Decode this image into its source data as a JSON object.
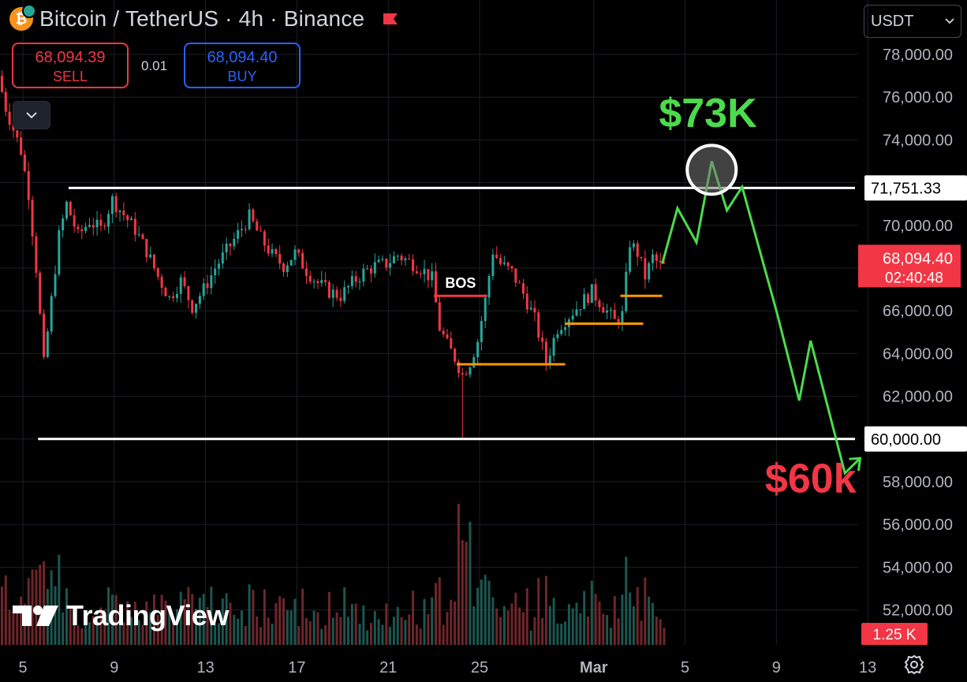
{
  "header": {
    "title": "Bitcoin / TetherUS · 4h · Binance",
    "sell_price": "68,094.39",
    "sell_label": "SELL",
    "spread": "0.01",
    "buy_price": "68,094.40",
    "buy_label": "BUY",
    "currency": "USDT"
  },
  "icons": {
    "coin": "bitcoin-icon",
    "flag": "flag-icon",
    "collapse": "chevron-down-icon",
    "settings": "gear-icon",
    "logo": "tradingview-logo"
  },
  "colors": {
    "up": "#26a69a",
    "down": "#f23645",
    "projection": "#4cdb4c",
    "level_line": "#ffffff",
    "orange_level": "#ff9800"
  },
  "logo_text": "TradingView",
  "chart_data": {
    "type": "candlestick",
    "timeframe": "4h",
    "ylim": [
      50500,
      79500
    ],
    "y_ticks": [
      78000,
      76000,
      74000,
      72000,
      70000,
      68000,
      66000,
      64000,
      62000,
      60000,
      58000,
      56000,
      54000,
      52000
    ],
    "y_tick_labels": [
      "78,000.00",
      "76,000.00",
      "74,000.00",
      "72,000.00",
      "70,000.00",
      "68,000.00",
      "66,000.00",
      "64,000.00",
      "62,000.00",
      "60,000.00",
      "58,000.00",
      "56,000.00",
      "54,000.00",
      "52,000.00"
    ],
    "x_tick_labels": [
      "5",
      "9",
      "13",
      "17",
      "21",
      "25",
      "Mar",
      "5",
      "9",
      "13"
    ],
    "x_tick_dates": [
      "Feb 5",
      "Feb 9",
      "Feb 13",
      "Feb 17",
      "Feb 21",
      "Feb 25",
      "Mar 1",
      "Mar 5",
      "Mar 9",
      "Mar 13"
    ],
    "x_start": "Feb 5",
    "x_end": "Mar 14",
    "price_path": [
      [
        "Feb 4 00:00",
        77000
      ],
      [
        "Feb 4 08:00",
        75500
      ],
      [
        "Feb 4 16:00",
        74500
      ],
      [
        "Feb 5 00:00",
        73500
      ],
      [
        "Feb 5 08:00",
        71500
      ],
      [
        "Feb 5 16:00",
        68000
      ],
      [
        "Feb 6 00:00",
        63500
      ],
      [
        "Feb 6 08:00",
        66500
      ],
      [
        "Feb 6 16:00",
        69500
      ],
      [
        "Feb 7 00:00",
        71000
      ],
      [
        "Feb 7 12:00",
        69500
      ],
      [
        "Feb 8 00:00",
        70200
      ],
      [
        "Feb 8 12:00",
        69800
      ],
      [
        "Feb 9 00:00",
        71200
      ],
      [
        "Feb 9 12:00",
        70500
      ],
      [
        "Feb 10 00:00",
        69800
      ],
      [
        "Feb 10 12:00",
        68800
      ],
      [
        "Feb 11 00:00",
        67600
      ],
      [
        "Feb 11 12:00",
        66600
      ],
      [
        "Feb 12 00:00",
        67400
      ],
      [
        "Feb 12 12:00",
        66200
      ],
      [
        "Feb 13 00:00",
        67000
      ],
      [
        "Feb 13 12:00",
        68000
      ],
      [
        "Feb 14 00:00",
        68800
      ],
      [
        "Feb 14 12:00",
        69600
      ],
      [
        "Feb 15 00:00",
        70400
      ],
      [
        "Feb 15 12:00",
        69400
      ],
      [
        "Feb 16 00:00",
        68600
      ],
      [
        "Feb 16 12:00",
        68100
      ],
      [
        "Feb 17 00:00",
        68700
      ],
      [
        "Feb 17 12:00",
        67900
      ],
      [
        "Feb 18 00:00",
        67300
      ],
      [
        "Feb 18 12:00",
        66900
      ],
      [
        "Feb 19 00:00",
        66700
      ],
      [
        "Feb 19 12:00",
        67300
      ],
      [
        "Feb 20 00:00",
        67800
      ],
      [
        "Feb 20 12:00",
        68100
      ],
      [
        "Feb 21 00:00",
        68200
      ],
      [
        "Feb 21 12:00",
        68600
      ],
      [
        "Feb 22 00:00",
        68300
      ],
      [
        "Feb 22 12:00",
        68000
      ],
      [
        "Feb 23 00:00",
        67500
      ],
      [
        "Feb 23 08:00",
        65200
      ],
      [
        "Feb 23 16:00",
        64400
      ],
      [
        "Feb 24 00:00",
        63800
      ],
      [
        "Feb 24 08:00",
        63000
      ],
      [
        "Feb 24 16:00",
        63600
      ],
      [
        "Feb 25 00:00",
        64600
      ],
      [
        "Feb 25 08:00",
        66500
      ],
      [
        "Feb 25 16:00",
        68800
      ],
      [
        "Feb 26 00:00",
        68200
      ],
      [
        "Feb 26 12:00",
        67800
      ],
      [
        "Feb 27 00:00",
        66800
      ],
      [
        "Feb 27 12:00",
        65600
      ],
      [
        "Feb 28 00:00",
        63600
      ],
      [
        "Feb 28 12:00",
        65200
      ],
      [
        "Mar 1 00:00",
        66900
      ],
      [
        "Mar 1 12:00",
        66200
      ],
      [
        "Mar 2 00:00",
        65500
      ],
      [
        "Mar 2 08:00",
        65800
      ],
      [
        "Mar 2 16:00",
        69200
      ],
      [
        "Mar 3 00:00",
        68700
      ],
      [
        "Mar 3 08:00",
        67600
      ],
      [
        "Mar 3 16:00",
        68500
      ],
      [
        "Mar 4 00:00",
        68094.4
      ]
    ],
    "volume_unit_label": "1.25 K",
    "levels": [
      {
        "name": "range-high",
        "price": 71751.33,
        "label": "71,751.33",
        "from": "Feb 7 00:00"
      },
      {
        "name": "range-low",
        "price": 60000,
        "label": "60,000.00",
        "from": "Feb 5 16:00"
      }
    ],
    "current_price": {
      "value": 68094.4,
      "label": "68,094.40",
      "countdown": "02:40:48"
    },
    "bos": {
      "label": "BOS",
      "price": 66700,
      "from": "Feb 23 00:00",
      "to": "Feb 25 08:00"
    },
    "orange_levels": [
      {
        "price": 63500,
        "from": "Feb 24 00:00",
        "to": "Feb 28 18:00"
      },
      {
        "price": 65400,
        "from": "Feb 28 18:00",
        "to": "Mar 3 04:00"
      },
      {
        "price": 66700,
        "from": "Mar 2 04:00",
        "to": "Mar 4 00:00"
      }
    ],
    "projection": [
      [
        "Mar 4 00:00",
        68200
      ],
      [
        "Mar 4 16:00",
        70800
      ],
      [
        "Mar 5 12:00",
        69200
      ],
      [
        "Mar 6 04:00",
        73000
      ],
      [
        "Mar 6 20:00",
        70700
      ],
      [
        "Mar 7 12:00",
        71800
      ],
      [
        "Mar 9 00:00",
        66000
      ],
      [
        "Mar 10 00:00",
        61800
      ],
      [
        "Mar 10 12:00",
        64600
      ],
      [
        "Mar 12 00:00",
        58400
      ],
      [
        "Mar 12 16:00",
        59100
      ]
    ],
    "annotations": [
      {
        "text": "$73K",
        "color": "#4cdb4c",
        "at": "Mar 6 00:00",
        "price": 74600
      },
      {
        "text": "$60k",
        "color": "#f23645",
        "at": "Mar 10 12:00",
        "price": 57500
      }
    ],
    "circle_marker": {
      "at": "Mar 6 04:00",
      "price": 72600
    }
  }
}
